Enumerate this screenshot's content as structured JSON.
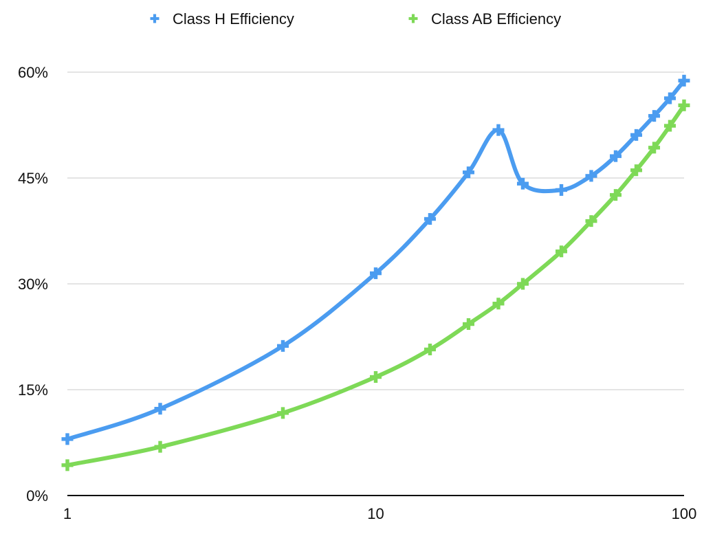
{
  "chart_data": {
    "type": "line",
    "title": "",
    "xlabel": "",
    "ylabel": "",
    "x_scale": "log",
    "xlim": [
      1,
      100
    ],
    "ylim": [
      0,
      60
    ],
    "x_ticks": [
      "1",
      "10",
      "100"
    ],
    "y_ticks": [
      "0%",
      "15%",
      "30%",
      "45%",
      "60%"
    ],
    "grid": true,
    "legend_position": "top-center",
    "series": [
      {
        "name": "Class H Efficiency",
        "color": "#4b9cf0",
        "marker": "plus",
        "x": [
          1,
          2,
          5,
          10,
          15,
          20,
          25,
          30,
          40,
          50,
          60,
          70,
          80,
          90,
          100
        ],
        "y": [
          8,
          12.3,
          21.2,
          31.5,
          39.2,
          45.8,
          51.8,
          44.2,
          43.3,
          45.3,
          48.1,
          51.1,
          53.8,
          56.3,
          58.8
        ]
      },
      {
        "name": "Class AB Efficiency",
        "color": "#7ed957",
        "marker": "plus",
        "x": [
          1,
          2,
          5,
          10,
          15,
          20,
          25,
          30,
          40,
          50,
          60,
          70,
          80,
          90,
          100
        ],
        "y": [
          4.3,
          6.9,
          11.7,
          16.8,
          20.7,
          24.3,
          27.2,
          30,
          34.6,
          38.9,
          42.6,
          46.1,
          49.3,
          52.4,
          55.3
        ]
      }
    ]
  }
}
